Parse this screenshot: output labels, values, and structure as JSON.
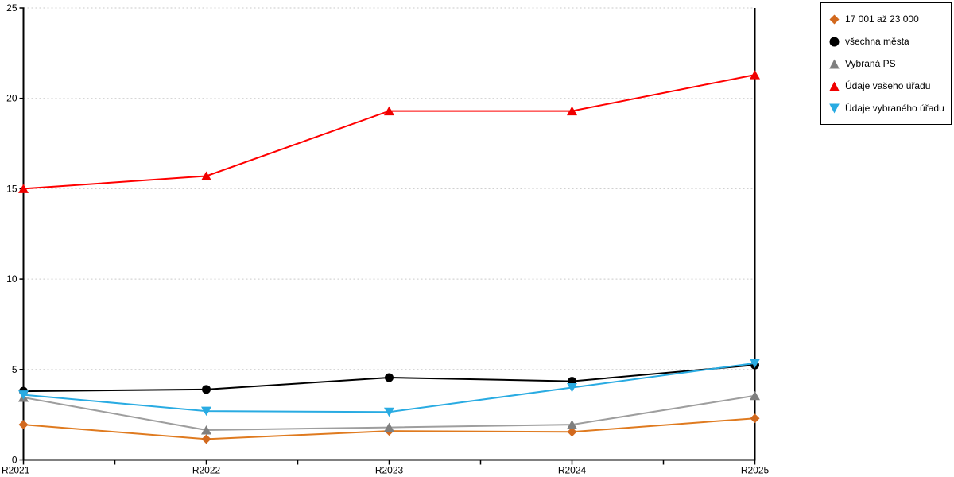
{
  "chart_data": {
    "type": "line",
    "title": "",
    "xlabel": "",
    "ylabel": "",
    "categories": [
      "R2021",
      "R2022",
      "R2023",
      "R2024",
      "R2025"
    ],
    "ylim": [
      0,
      25
    ],
    "yticks": [
      0,
      5,
      10,
      15,
      20,
      25
    ],
    "grid": "horizontal-dashed",
    "legend_position": "top-right",
    "series": [
      {
        "name": "17 001 až 23 000",
        "marker": "diamond",
        "color": "#DF7A1F",
        "marker_color": "#D2691E",
        "values": [
          1.95,
          1.15,
          1.6,
          1.55,
          2.3
        ]
      },
      {
        "name": "všechna města",
        "marker": "circle",
        "color": "#000000",
        "marker_color": "#000000",
        "values": [
          3.8,
          3.9,
          4.55,
          4.35,
          5.25
        ]
      },
      {
        "name": "Vybraná PS",
        "marker": "triangle-up",
        "color": "#9E9E9E",
        "marker_color": "#7F7F7F",
        "values": [
          3.45,
          1.65,
          1.8,
          1.95,
          3.55
        ]
      },
      {
        "name": "Údaje vašeho úřadu",
        "marker": "triangle-up",
        "color": "#FF0000",
        "marker_color": "#F00000",
        "values": [
          15.0,
          15.7,
          19.3,
          19.3,
          21.3
        ]
      },
      {
        "name": "Údaje vybraného úřadu",
        "marker": "triangle-down",
        "color": "#29ABE2",
        "marker_color": "#29ABE2",
        "values": [
          3.6,
          2.7,
          2.65,
          4.0,
          5.35
        ]
      }
    ],
    "axis_color": "#000000",
    "gridline_color": "#C9C9C9",
    "tick_label_color": "#000000"
  }
}
